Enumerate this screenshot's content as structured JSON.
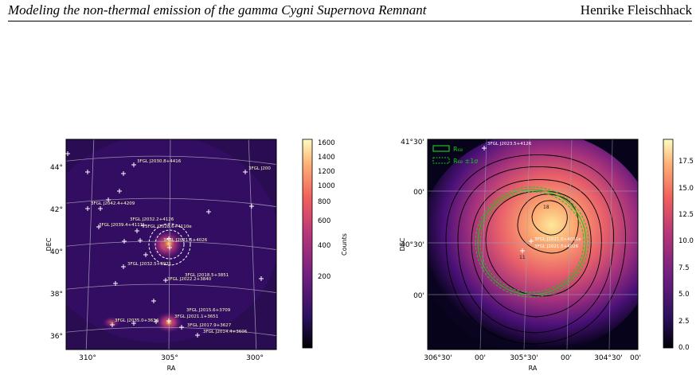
{
  "header": {
    "left": "Modeling the non-thermal emission of the gamma Cygni Supernova Remnant",
    "right": "Henrike Fleischhack"
  },
  "colors": {
    "map_bg": "#2a0c52",
    "contour": "#000000",
    "r68": "#14c814",
    "marker": "#ffffff",
    "label_text": "#ffffc0"
  },
  "left_panel": {
    "xlabel": "RA",
    "ylabel": "DEC",
    "x_ticks": [
      "310°",
      "305°",
      "300°"
    ],
    "y_ticks": [
      "44°",
      "42°",
      "40°",
      "38°",
      "36°"
    ],
    "colorbar_label": "Counts",
    "colorbar_ticks": [
      "1600",
      "1400",
      "1200",
      "1000",
      "800",
      "600",
      "400",
      "200"
    ],
    "sources": [
      "3FGL J2030.8+4416",
      "3FGL J200",
      "3FGL J2042.4+4209",
      "3FGL J2039.4+4111",
      "3FGL J2032.2+4126",
      "3FGL J2028.6+4110e",
      "3FGL J2021.5+4026",
      "3FGL J2032.5+3921",
      "3FGL J2018.5+3851",
      "3FGL J2022.2+3840",
      "3FGL J2015.6+3709",
      "3FGL J2021.1+3651",
      "3FGL J2035.0+3634",
      "3FGL J2017.9+3627",
      "3FGL J2014.4+3606"
    ]
  },
  "right_panel": {
    "xlabel": "RA",
    "ylabel": "DEC",
    "x_ticks": [
      "306°30'",
      "00'",
      "305°30'",
      "00'",
      "304°30'",
      "00'"
    ],
    "y_ticks": [
      "41°30'",
      "00'",
      "40°30'",
      "00'"
    ],
    "legend": [
      "R₆₈",
      "R₆₈ ±1σ"
    ],
    "colorbar_ticks": [
      "17.5",
      "15.0",
      "12.5",
      "10.0",
      "7.5",
      "5.0",
      "2.5",
      "0.0"
    ],
    "sources": [
      "3FGL J2023.5+4126",
      "3FGL J2021.0+4031e",
      "3FGL J2021.5+4026"
    ],
    "contour_labels": [
      "18",
      "11"
    ]
  }
}
